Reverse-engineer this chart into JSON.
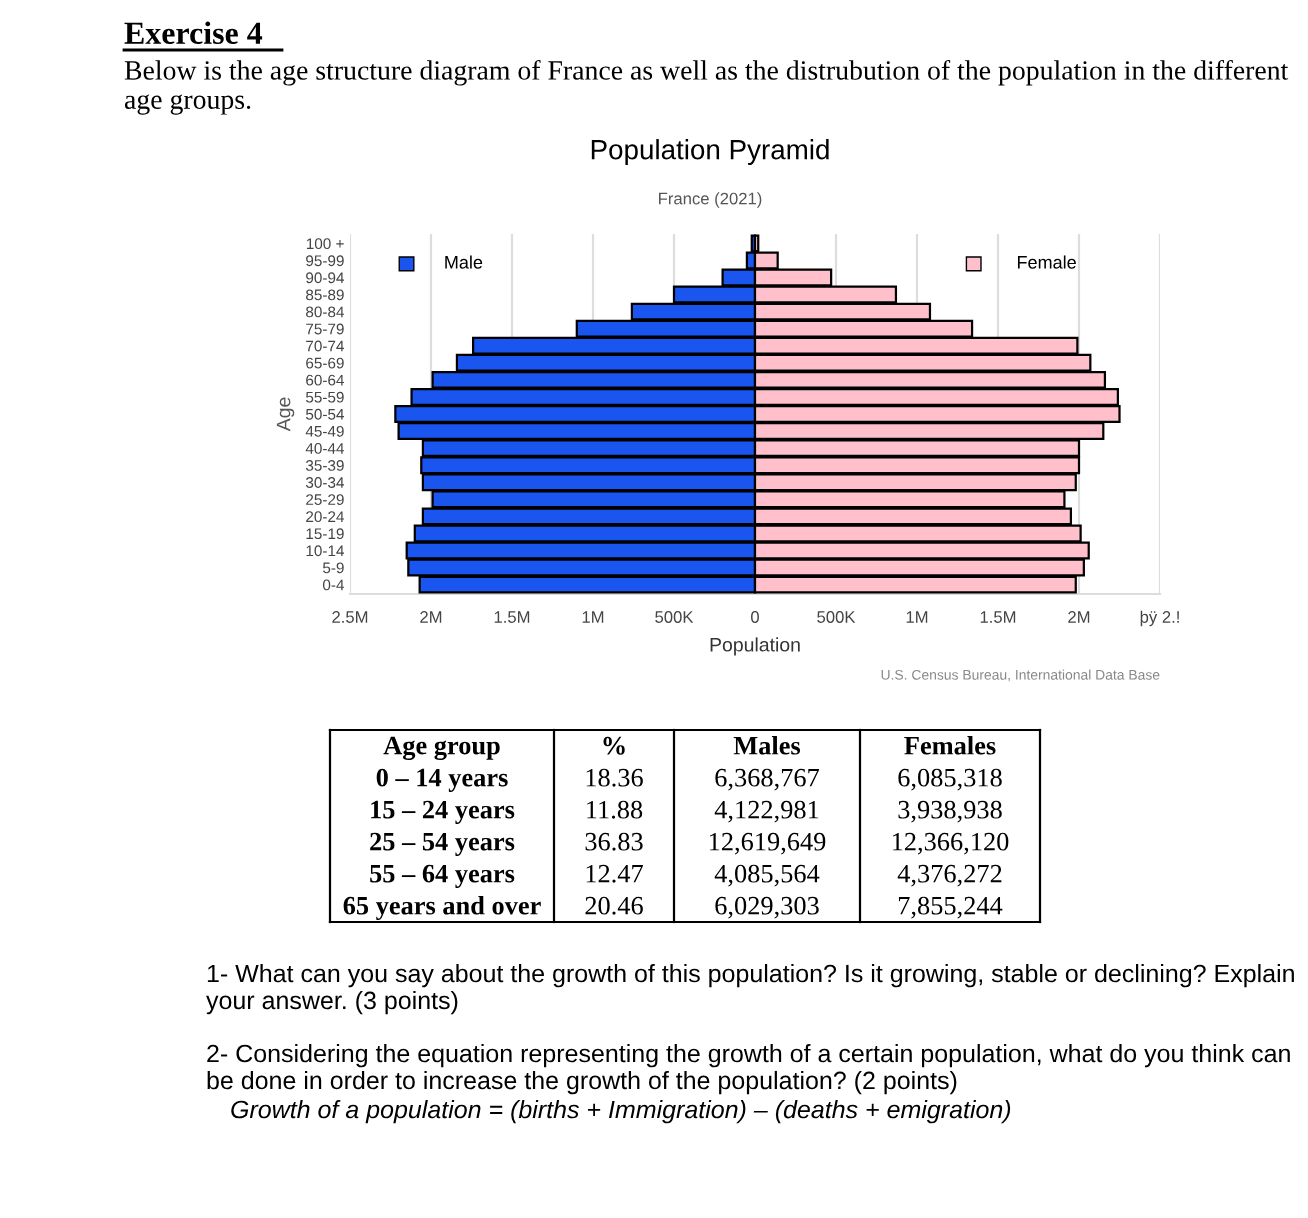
{
  "chart_data": {
    "type": "bar",
    "orientation": "horizontal",
    "title": "Population Pyramid",
    "subtitle": "France (2021)",
    "xlabel": "Population",
    "ylabel": "Age",
    "categories": [
      "100 +",
      "95-99",
      "90-94",
      "85-89",
      "80-84",
      "75-79",
      "70-74",
      "65-69",
      "60-64",
      "55-59",
      "50-54",
      "45-49",
      "40-44",
      "35-39",
      "30-34",
      "25-29",
      "20-24",
      "15-19",
      "10-14",
      "5-9",
      "0-4"
    ],
    "series": [
      {
        "name": "Male",
        "color": "#1a55f0",
        "values": [
          -20000,
          -50000,
          -200000,
          -500000,
          -760000,
          -1100000,
          -1740000,
          -1840000,
          -1990000,
          -2120000,
          -2220000,
          -2200000,
          -2050000,
          -2060000,
          -2050000,
          -1990000,
          -2050000,
          -2100000,
          -2150000,
          -2140000,
          -2070000
        ]
      },
      {
        "name": "Female",
        "color": "#ffc0cb",
        "values": [
          20000,
          140000,
          470000,
          870000,
          1080000,
          1340000,
          1990000,
          2070000,
          2160000,
          2240000,
          2250000,
          2150000,
          2000000,
          2000000,
          1980000,
          1910000,
          1950000,
          2010000,
          2060000,
          2030000,
          1980000
        ]
      }
    ],
    "xlim": [
      -2500000,
      2500000
    ],
    "stacked": true,
    "xticks": [
      {
        "value": -2500000,
        "label": "2.5M"
      },
      {
        "value": -2000000,
        "label": "2M"
      },
      {
        "value": -1500000,
        "label": "1.5M"
      },
      {
        "value": -1000000,
        "label": "1M"
      },
      {
        "value": -500000,
        "label": "500K"
      },
      0,
      {
        "value": 500000,
        "label": "500K"
      },
      {
        "value": 1000000,
        "label": "1M"
      },
      {
        "value": 1500000,
        "label": "1.5M"
      },
      {
        "value": 2000000,
        "label": "2M"
      },
      {
        "value": 2500000,
        "label": "þÿ 2.!"
      }
    ],
    "grid": "x",
    "legend": "top",
    "annotations": [
      "Exercise 4",
      "Below is the age structure diagram of France as well as the distrubution of the population in the different age groups.",
      "U.S. Census Bureau, International Data Base",
      "Age group",
      "%",
      "Males",
      "Females",
      "0 – 14 years",
      "18.36",
      "6,368,767",
      "6,085,318",
      "15 – 24 years",
      "11.88",
      "4,122,981",
      "3,938,938",
      "25 – 54 years",
      "36.83",
      "12,619,649",
      "12,366,120",
      "55 – 64 years",
      "12.47",
      "4,085,564",
      "4,376,272",
      "65 years and over",
      "20.46",
      "6,029,303",
      "7,855,244",
      "1- What can you say about the growth of this population? Is it growing, stable or declining? Explain your answer. (3 points)",
      "2- Considering the equation representing the growth of a certain population, what do you think can be done in order to increase the growth of the population? (2 points)",
      "Growth of a population = (births + Immigration) – (deaths + emigration)"
    ]
  }
}
